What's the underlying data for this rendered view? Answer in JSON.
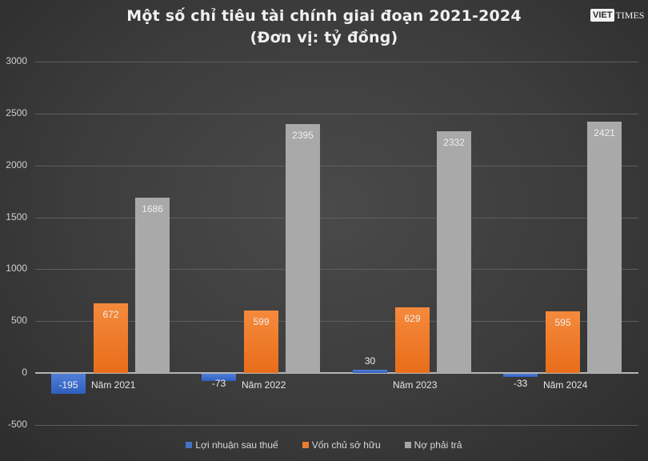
{
  "header": {
    "title_line1": "Một số chỉ tiêu tài chính giai đoạn 2021-2024",
    "title_line2": "(Đơn vị: tỷ đồng)",
    "logo_main": "VIET",
    "logo_secondary": "TIMES"
  },
  "legend": [
    {
      "label": "Lợi nhuận sau thuế",
      "color": "#4472c4"
    },
    {
      "label": "Vốn chủ sở hữu",
      "color": "#ed7d31"
    },
    {
      "label": "Nợ phải trả",
      "color": "#a5a5a5"
    }
  ],
  "chart_data": {
    "type": "bar",
    "title": "Một số chỉ tiêu tài chính giai đoạn 2021-2024 (Đơn vị: tỷ đồng)",
    "categories": [
      "Năm 2021",
      "Năm 2022",
      "Năm 2023",
      "Năm 2024"
    ],
    "series": [
      {
        "name": "Lợi nhuận sau thuế",
        "color": "#4472c4",
        "values": [
          -195,
          -73,
          30,
          -33
        ]
      },
      {
        "name": "Vốn chủ sở hữu",
        "color": "#ed7d31",
        "values": [
          672,
          599,
          629,
          595
        ]
      },
      {
        "name": "Nợ phải trả",
        "color": "#a5a5a5",
        "values": [
          1686,
          2395,
          2332,
          2421
        ]
      }
    ],
    "yticks": [
      "3000",
      "2500",
      "2000",
      "1500",
      "1000",
      "500",
      "0",
      "-500"
    ],
    "ylim": [
      -500,
      3000
    ],
    "xlabel": "",
    "ylabel": "",
    "grid": true,
    "legend_position": "bottom",
    "data_labels": true
  }
}
